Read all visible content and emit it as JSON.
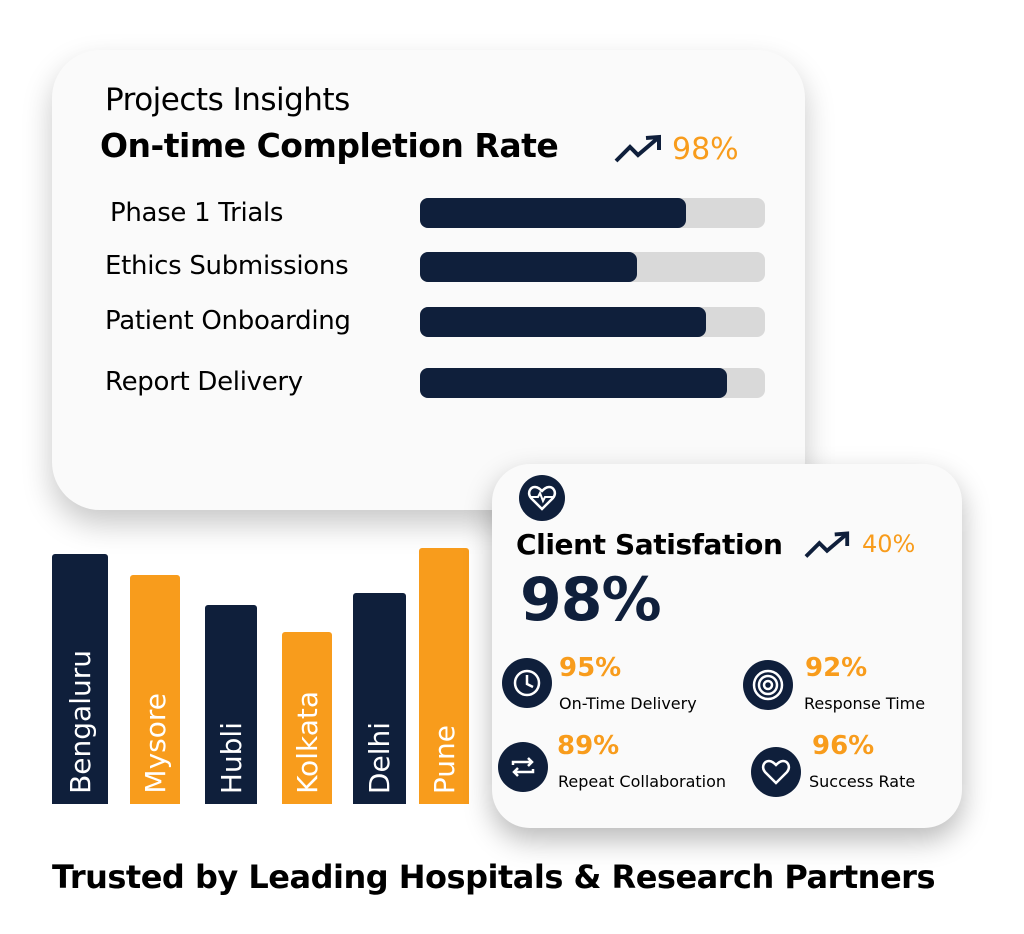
{
  "insights": {
    "heading": "Projects Insights",
    "title": "On-time Completion Rate",
    "trend_value": "98%",
    "progress": [
      {
        "label": "Phase 1 Trials",
        "fraction": 0.77
      },
      {
        "label": "Ethics Submissions",
        "fraction": 0.63
      },
      {
        "label": "Patient Onboarding",
        "fraction": 0.83
      },
      {
        "label": "Report Delivery",
        "fraction": 0.89
      }
    ]
  },
  "satisfaction": {
    "title": "Client Satisfation",
    "trend_value": "40%",
    "value": "98%",
    "metrics": [
      {
        "value": "95%",
        "label": "On-Time Delivery"
      },
      {
        "value": "92%",
        "label": "Response Time"
      },
      {
        "value": "89%",
        "label": "Repeat Collaboration"
      },
      {
        "value": "96%",
        "label": "Success Rate"
      }
    ]
  },
  "chart_data": {
    "type": "bar",
    "categories": [
      "Bengaluru",
      "Mysore",
      "Hubli",
      "Kolkata",
      "Delhi",
      "Pune"
    ],
    "values": [
      250,
      229,
      199,
      172,
      211,
      256
    ],
    "colors": [
      "#0f1f3b",
      "#f89c1c",
      "#0f1f3b",
      "#f89c1c",
      "#0f1f3b",
      "#f89c1c"
    ],
    "title": "",
    "xlabel": "",
    "ylabel": ""
  },
  "footer": "Trusted by Leading Hospitals & Research Partners",
  "colors": {
    "navy": "#0f1f3b",
    "orange": "#f89c1c",
    "track": "#d9d9d9"
  }
}
